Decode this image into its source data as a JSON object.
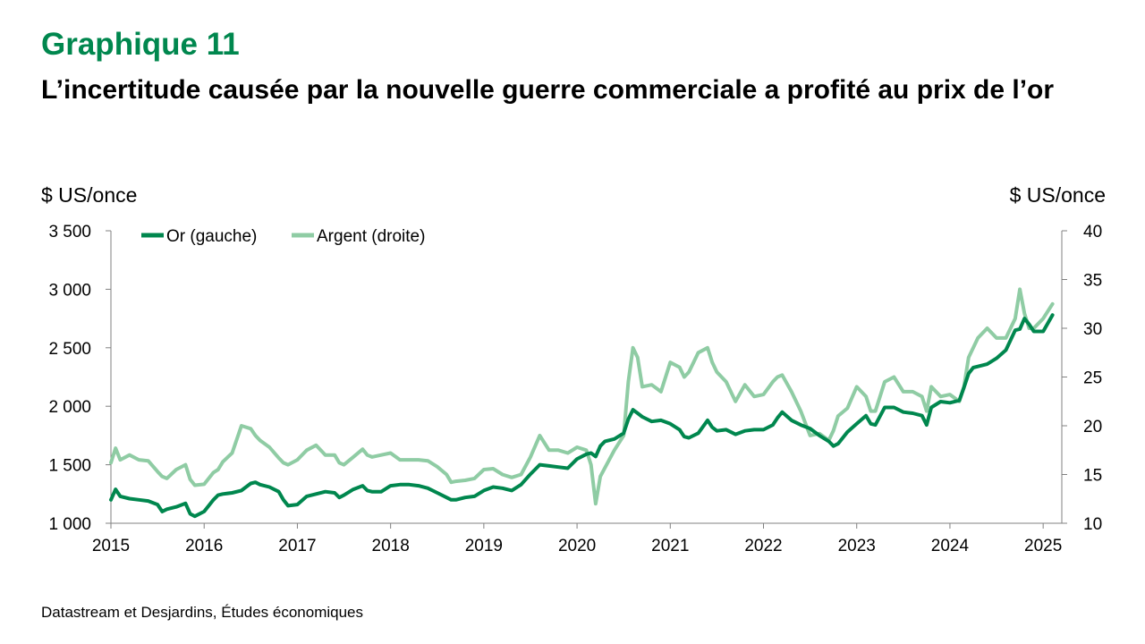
{
  "header": {
    "kicker": "Graphique 11",
    "title": "L’incertitude causée par la nouvelle guerre commerciale a profité au prix de l’or"
  },
  "source": "Datastream et Desjardins, Études économiques",
  "colors": {
    "gold": "#00874E",
    "silver": "#8FCCA4",
    "kicker": "#00874E"
  },
  "chart_data": {
    "type": "line",
    "ylabel": "$ US/once",
    "ylabel_right": "$ US/once",
    "ylim": [
      1000,
      3500
    ],
    "ylim_right": [
      10,
      40
    ],
    "xlim": [
      2015,
      2025.2
    ],
    "y_ticks": [
      "3 500",
      "3 000",
      "2 500",
      "2 000",
      "1 500",
      "1 000"
    ],
    "y_tick_values": [
      3500,
      3000,
      2500,
      2000,
      1500,
      1000
    ],
    "y_right_ticks": [
      "40",
      "35",
      "30",
      "25",
      "20",
      "15",
      "10"
    ],
    "y_right_tick_values": [
      40,
      35,
      30,
      25,
      20,
      15,
      10
    ],
    "x_ticks": [
      "2015",
      "2016",
      "2017",
      "2018",
      "2019",
      "2020",
      "2021",
      "2022",
      "2023",
      "2024",
      "2025"
    ],
    "x_tick_values": [
      2015,
      2016,
      2017,
      2018,
      2019,
      2020,
      2021,
      2022,
      2023,
      2024,
      2025
    ],
    "legend_position": "top-left",
    "series": [
      {
        "name": "Or (gauche)",
        "axis": "left",
        "x": [
          2015.0,
          2015.05,
          2015.1,
          2015.2,
          2015.3,
          2015.4,
          2015.5,
          2015.55,
          2015.6,
          2015.7,
          2015.8,
          2015.85,
          2015.9,
          2016.0,
          2016.1,
          2016.15,
          2016.2,
          2016.3,
          2016.4,
          2016.5,
          2016.55,
          2016.6,
          2016.7,
          2016.8,
          2016.85,
          2016.9,
          2017.0,
          2017.1,
          2017.2,
          2017.3,
          2017.4,
          2017.45,
          2017.5,
          2017.6,
          2017.7,
          2017.75,
          2017.8,
          2017.9,
          2018.0,
          2018.1,
          2018.2,
          2018.3,
          2018.4,
          2018.5,
          2018.6,
          2018.65,
          2018.7,
          2018.8,
          2018.9,
          2019.0,
          2019.1,
          2019.2,
          2019.3,
          2019.4,
          2019.5,
          2019.6,
          2019.7,
          2019.8,
          2019.9,
          2020.0,
          2020.1,
          2020.15,
          2020.2,
          2020.25,
          2020.3,
          2020.4,
          2020.5,
          2020.55,
          2020.6,
          2020.65,
          2020.7,
          2020.8,
          2020.9,
          2021.0,
          2021.1,
          2021.15,
          2021.2,
          2021.3,
          2021.4,
          2021.45,
          2021.5,
          2021.6,
          2021.7,
          2021.8,
          2021.9,
          2022.0,
          2022.1,
          2022.15,
          2022.2,
          2022.3,
          2022.4,
          2022.5,
          2022.6,
          2022.7,
          2022.75,
          2022.8,
          2022.9,
          2023.0,
          2023.1,
          2023.15,
          2023.2,
          2023.3,
          2023.4,
          2023.5,
          2023.6,
          2023.7,
          2023.75,
          2023.8,
          2023.9,
          2024.0,
          2024.1,
          2024.15,
          2024.2,
          2024.25,
          2024.3,
          2024.4,
          2024.5,
          2024.6,
          2024.7,
          2024.75,
          2024.8,
          2024.85,
          2024.9,
          2025.0,
          2025.1
        ],
        "values": [
          1200,
          1290,
          1230,
          1210,
          1200,
          1190,
          1160,
          1100,
          1120,
          1140,
          1170,
          1080,
          1060,
          1100,
          1200,
          1240,
          1250,
          1260,
          1280,
          1340,
          1350,
          1330,
          1310,
          1270,
          1200,
          1150,
          1160,
          1230,
          1250,
          1270,
          1260,
          1220,
          1240,
          1290,
          1320,
          1280,
          1270,
          1270,
          1320,
          1330,
          1330,
          1320,
          1300,
          1260,
          1220,
          1200,
          1200,
          1220,
          1230,
          1280,
          1310,
          1300,
          1280,
          1330,
          1420,
          1500,
          1490,
          1480,
          1470,
          1550,
          1590,
          1600,
          1570,
          1660,
          1700,
          1720,
          1770,
          1890,
          1970,
          1940,
          1910,
          1870,
          1880,
          1850,
          1800,
          1740,
          1730,
          1770,
          1880,
          1820,
          1790,
          1800,
          1760,
          1790,
          1800,
          1800,
          1840,
          1900,
          1950,
          1880,
          1840,
          1810,
          1750,
          1700,
          1660,
          1680,
          1780,
          1850,
          1920,
          1850,
          1840,
          1990,
          1990,
          1950,
          1940,
          1920,
          1840,
          1990,
          2040,
          2030,
          2050,
          2160,
          2280,
          2330,
          2340,
          2360,
          2410,
          2480,
          2650,
          2660,
          2750,
          2700,
          2640,
          2640,
          2780
        ]
      },
      {
        "name": "Argent (droite)",
        "axis": "right",
        "x": [
          2015.0,
          2015.05,
          2015.1,
          2015.2,
          2015.3,
          2015.4,
          2015.5,
          2015.55,
          2015.6,
          2015.7,
          2015.8,
          2015.85,
          2015.9,
          2016.0,
          2016.1,
          2016.15,
          2016.2,
          2016.3,
          2016.4,
          2016.5,
          2016.55,
          2016.6,
          2016.7,
          2016.8,
          2016.85,
          2016.9,
          2017.0,
          2017.1,
          2017.2,
          2017.3,
          2017.4,
          2017.45,
          2017.5,
          2017.6,
          2017.7,
          2017.75,
          2017.8,
          2017.9,
          2018.0,
          2018.1,
          2018.2,
          2018.3,
          2018.4,
          2018.5,
          2018.6,
          2018.65,
          2018.7,
          2018.8,
          2018.9,
          2019.0,
          2019.1,
          2019.2,
          2019.3,
          2019.4,
          2019.5,
          2019.6,
          2019.7,
          2019.8,
          2019.9,
          2020.0,
          2020.1,
          2020.15,
          2020.2,
          2020.25,
          2020.3,
          2020.4,
          2020.5,
          2020.55,
          2020.6,
          2020.65,
          2020.7,
          2020.8,
          2020.9,
          2021.0,
          2021.1,
          2021.15,
          2021.2,
          2021.3,
          2021.4,
          2021.45,
          2021.5,
          2021.6,
          2021.7,
          2021.8,
          2021.9,
          2022.0,
          2022.1,
          2022.15,
          2022.2,
          2022.3,
          2022.4,
          2022.5,
          2022.6,
          2022.7,
          2022.75,
          2022.8,
          2022.9,
          2023.0,
          2023.1,
          2023.15,
          2023.2,
          2023.3,
          2023.4,
          2023.5,
          2023.6,
          2023.7,
          2023.75,
          2023.8,
          2023.9,
          2024.0,
          2024.1,
          2024.15,
          2024.2,
          2024.25,
          2024.3,
          2024.4,
          2024.5,
          2024.6,
          2024.7,
          2024.75,
          2024.8,
          2024.85,
          2024.9,
          2025.0,
          2025.1
        ],
        "values": [
          16.2,
          17.7,
          16.5,
          17.0,
          16.5,
          16.4,
          15.3,
          14.8,
          14.6,
          15.5,
          16.0,
          14.5,
          13.9,
          14.0,
          15.2,
          15.5,
          16.3,
          17.2,
          20.0,
          19.7,
          19.0,
          18.5,
          17.8,
          16.7,
          16.2,
          16.0,
          16.5,
          17.5,
          18.0,
          17.0,
          17.0,
          16.2,
          16.0,
          16.8,
          17.6,
          17.0,
          16.8,
          17.0,
          17.2,
          16.5,
          16.5,
          16.5,
          16.4,
          15.8,
          15.0,
          14.2,
          14.3,
          14.4,
          14.6,
          15.5,
          15.6,
          15.0,
          14.7,
          15.0,
          16.8,
          19.0,
          17.5,
          17.5,
          17.2,
          17.8,
          17.5,
          16.0,
          12.0,
          14.8,
          15.7,
          17.5,
          19.0,
          24.5,
          28.0,
          27.0,
          24.0,
          24.2,
          23.5,
          26.5,
          26.0,
          25.0,
          25.5,
          27.5,
          28.0,
          26.5,
          25.5,
          24.5,
          22.5,
          24.2,
          23.0,
          23.2,
          24.5,
          25.0,
          25.2,
          23.5,
          21.5,
          19.0,
          19.2,
          18.5,
          19.5,
          21.0,
          21.8,
          24.0,
          23.0,
          21.5,
          21.5,
          24.5,
          25.0,
          23.5,
          23.5,
          23.0,
          21.5,
          24.0,
          23.0,
          23.2,
          22.5,
          24.0,
          27.0,
          28.0,
          29.0,
          30.0,
          29.0,
          29.0,
          31.0,
          34.0,
          31.5,
          30.0,
          30.0,
          31.0,
          32.5
        ]
      }
    ]
  }
}
